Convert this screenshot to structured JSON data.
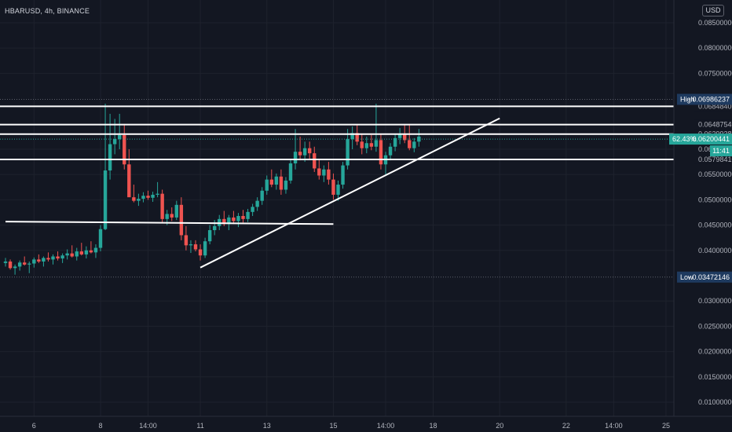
{
  "header": {
    "symbol": "HBARUSD, 4h, BINANCE",
    "currency_label": "USD"
  },
  "colors": {
    "background": "#131722",
    "up": "#26a69a",
    "down": "#ef5350",
    "drawing": "#ffffff",
    "tag_dark": "#1e3a5f",
    "tag_price": "#26a69a"
  },
  "chart_data": {
    "type": "candlestick",
    "timeframe": "4h",
    "y_axis": {
      "ticks": [
        "0.08500000",
        "0.08000000",
        "0.07500000",
        "0.06848406",
        "0.06487549",
        "0.06299382",
        "0.06000000",
        "0.05798410",
        "0.05500000",
        "0.05000000",
        "0.04500000",
        "0.04000000",
        "0.03000000",
        "0.02500000",
        "0.02000000",
        "0.01500000",
        "0.01000000"
      ],
      "ylim": [
        0.0072,
        0.0895
      ]
    },
    "x_axis": {
      "ticks": [
        "6",
        "8",
        "14:00",
        "11",
        "13",
        "15",
        "14:00",
        "18",
        "20",
        "22",
        "14:00",
        "25"
      ]
    },
    "price_levels": [
      0.06848406,
      0.06487549,
      0.06299382,
      0.0579841
    ],
    "high": {
      "label": "High",
      "value": "0.06986237"
    },
    "low": {
      "label": "Low",
      "value": "0.03472146"
    },
    "current": {
      "change": "62.43%",
      "price": "0.06200441",
      "countdown": "11:41"
    },
    "trend_lines": [
      {
        "name": "horizontal-support",
        "points": [
          [
            0,
            0.0457
          ],
          [
            69,
            0.0452
          ]
        ]
      },
      {
        "name": "ascending-trendline",
        "points": [
          [
            41,
            0.0366
          ],
          [
            104,
            0.0661
          ]
        ]
      }
    ],
    "candles": [
      [
        0.0375,
        0.0385,
        0.0368,
        0.0378
      ],
      [
        0.0378,
        0.0382,
        0.0362,
        0.0365
      ],
      [
        0.0365,
        0.0372,
        0.0352,
        0.0368
      ],
      [
        0.0368,
        0.038,
        0.036,
        0.0376
      ],
      [
        0.0376,
        0.0388,
        0.037,
        0.0372
      ],
      [
        0.0372,
        0.0378,
        0.0355,
        0.0374
      ],
      [
        0.0374,
        0.0386,
        0.0366,
        0.0382
      ],
      [
        0.0382,
        0.0392,
        0.0375,
        0.0378
      ],
      [
        0.0378,
        0.0388,
        0.0368,
        0.0385
      ],
      [
        0.0385,
        0.0396,
        0.0378,
        0.0382
      ],
      [
        0.0382,
        0.0392,
        0.0372,
        0.0388
      ],
      [
        0.0388,
        0.0398,
        0.038,
        0.0384
      ],
      [
        0.0384,
        0.0394,
        0.0375,
        0.039
      ],
      [
        0.039,
        0.0402,
        0.0382,
        0.0394
      ],
      [
        0.0394,
        0.041,
        0.0386,
        0.0388
      ],
      [
        0.0388,
        0.0405,
        0.038,
        0.0398
      ],
      [
        0.0398,
        0.0415,
        0.039,
        0.0392
      ],
      [
        0.0392,
        0.0408,
        0.0384,
        0.04
      ],
      [
        0.04,
        0.0418,
        0.0394,
        0.0396
      ],
      [
        0.0396,
        0.0412,
        0.0385,
        0.0405
      ],
      [
        0.0405,
        0.045,
        0.0398,
        0.0442
      ],
      [
        0.0442,
        0.069,
        0.044,
        0.0558
      ],
      [
        0.0558,
        0.067,
        0.054,
        0.061
      ],
      [
        0.061,
        0.066,
        0.059,
        0.062
      ],
      [
        0.062,
        0.067,
        0.06,
        0.0628
      ],
      [
        0.0628,
        0.065,
        0.056,
        0.057
      ],
      [
        0.057,
        0.06,
        0.051,
        0.0505
      ],
      [
        0.0505,
        0.053,
        0.0495,
        0.0498
      ],
      [
        0.0498,
        0.0512,
        0.0488,
        0.0502
      ],
      [
        0.0502,
        0.0515,
        0.0495,
        0.0508
      ],
      [
        0.0508,
        0.0518,
        0.05,
        0.0504
      ],
      [
        0.0504,
        0.0516,
        0.0496,
        0.051
      ],
      [
        0.051,
        0.0535,
        0.0505,
        0.0512
      ],
      [
        0.0512,
        0.052,
        0.0455,
        0.0462
      ],
      [
        0.0462,
        0.048,
        0.045,
        0.0472
      ],
      [
        0.0472,
        0.0485,
        0.0458,
        0.0465
      ],
      [
        0.0465,
        0.0498,
        0.046,
        0.049
      ],
      [
        0.049,
        0.0505,
        0.042,
        0.043
      ],
      [
        0.043,
        0.0448,
        0.04,
        0.041
      ],
      [
        0.041,
        0.042,
        0.0395,
        0.0412
      ],
      [
        0.0412,
        0.042,
        0.0398,
        0.0402
      ],
      [
        0.0402,
        0.0412,
        0.038,
        0.039
      ],
      [
        0.039,
        0.0425,
        0.0385,
        0.0418
      ],
      [
        0.0418,
        0.045,
        0.0412,
        0.044
      ],
      [
        0.044,
        0.046,
        0.043,
        0.0448
      ],
      [
        0.0448,
        0.047,
        0.044,
        0.0462
      ],
      [
        0.0462,
        0.0478,
        0.0448,
        0.0452
      ],
      [
        0.0452,
        0.047,
        0.044,
        0.0465
      ],
      [
        0.0465,
        0.0478,
        0.0452,
        0.0458
      ],
      [
        0.0458,
        0.0474,
        0.0446,
        0.0468
      ],
      [
        0.0468,
        0.048,
        0.0455,
        0.0462
      ],
      [
        0.0462,
        0.0482,
        0.0456,
        0.0476
      ],
      [
        0.0476,
        0.0492,
        0.0468,
        0.0486
      ],
      [
        0.0486,
        0.0505,
        0.0478,
        0.0498
      ],
      [
        0.0498,
        0.0525,
        0.049,
        0.0518
      ],
      [
        0.0518,
        0.0548,
        0.051,
        0.054
      ],
      [
        0.054,
        0.056,
        0.0525,
        0.053
      ],
      [
        0.053,
        0.0552,
        0.052,
        0.0546
      ],
      [
        0.0546,
        0.056,
        0.051,
        0.052
      ],
      [
        0.052,
        0.0545,
        0.0512,
        0.0538
      ],
      [
        0.0538,
        0.058,
        0.0532,
        0.0572
      ],
      [
        0.0572,
        0.064,
        0.056,
        0.0595
      ],
      [
        0.0595,
        0.0625,
        0.0578,
        0.0588
      ],
      [
        0.0588,
        0.0615,
        0.0575,
        0.0602
      ],
      [
        0.0602,
        0.0615,
        0.058,
        0.0592
      ],
      [
        0.0592,
        0.0605,
        0.0555,
        0.0562
      ],
      [
        0.0562,
        0.058,
        0.054,
        0.0548
      ],
      [
        0.0548,
        0.0568,
        0.0535,
        0.056
      ],
      [
        0.056,
        0.0575,
        0.053,
        0.054
      ],
      [
        0.054,
        0.0552,
        0.05,
        0.051
      ],
      [
        0.051,
        0.0538,
        0.0498,
        0.053
      ],
      [
        0.053,
        0.0575,
        0.0522,
        0.0568
      ],
      [
        0.0568,
        0.064,
        0.056,
        0.062
      ],
      [
        0.062,
        0.0645,
        0.06,
        0.0632
      ],
      [
        0.0632,
        0.0648,
        0.0608,
        0.0615
      ],
      [
        0.0615,
        0.063,
        0.059,
        0.0602
      ],
      [
        0.0602,
        0.0625,
        0.0592,
        0.0612
      ],
      [
        0.0612,
        0.0628,
        0.0598,
        0.0605
      ],
      [
        0.0605,
        0.069,
        0.0595,
        0.0618
      ],
      [
        0.0618,
        0.063,
        0.056,
        0.057
      ],
      [
        0.057,
        0.0595,
        0.055,
        0.0588
      ],
      [
        0.0588,
        0.0612,
        0.0578,
        0.0605
      ],
      [
        0.0605,
        0.063,
        0.0596,
        0.0622
      ],
      [
        0.0622,
        0.0642,
        0.061,
        0.063
      ],
      [
        0.063,
        0.0648,
        0.0612,
        0.0618
      ],
      [
        0.0618,
        0.065,
        0.0598,
        0.0602
      ],
      [
        0.0602,
        0.0622,
        0.0594,
        0.0615
      ],
      [
        0.0615,
        0.064,
        0.0605,
        0.0625
      ]
    ]
  }
}
